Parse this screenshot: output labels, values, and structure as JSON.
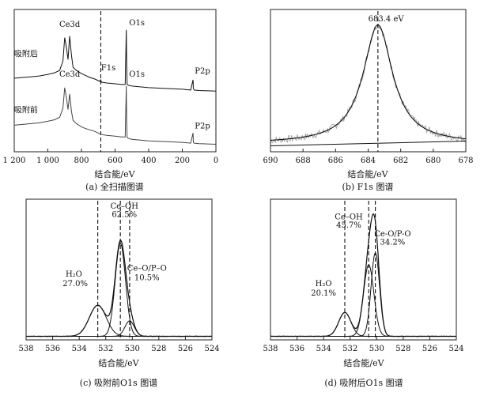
{
  "chart_data": [
    {
      "id": "a",
      "type": "line",
      "caption": "(a) 全扫描图谱",
      "xlabel": "结合能/eV",
      "xlim": [
        1200,
        0
      ],
      "x_ticks": [
        "1 200",
        "1 000",
        "800",
        "600",
        "400",
        "200",
        "0"
      ],
      "x_tick_values": [
        1200,
        1000,
        800,
        600,
        400,
        200,
        0
      ],
      "reference_line_x": 685,
      "series": [
        {
          "name": "吸附后",
          "x": [
            1200,
            1150,
            1100,
            1050,
            1000,
            960,
            930,
            910,
            900,
            890,
            880,
            870,
            860,
            850,
            830,
            800,
            780,
            750,
            720,
            700,
            690,
            686,
            680,
            650,
            600,
            560,
            540,
            533,
            531,
            528,
            520,
            500,
            450,
            400,
            300,
            200,
            150,
            136,
            134,
            130,
            100,
            50,
            0
          ],
          "y": [
            5.6,
            5.65,
            5.7,
            5.75,
            5.85,
            5.95,
            6.1,
            6.7,
            8.2,
            7.6,
            6.8,
            8.3,
            7.1,
            6.3,
            6.1,
            5.9,
            5.8,
            5.65,
            5.55,
            5.45,
            5.4,
            5.5,
            5.35,
            5.3,
            5.25,
            5.2,
            5.2,
            8.7,
            6.4,
            5.2,
            5.15,
            5.1,
            5.05,
            5.0,
            4.95,
            4.9,
            4.85,
            5.5,
            4.95,
            4.85,
            4.82,
            4.8,
            4.78
          ]
        },
        {
          "name": "吸附前",
          "x": [
            1200,
            1150,
            1100,
            1050,
            1000,
            960,
            930,
            910,
            900,
            890,
            880,
            870,
            860,
            850,
            830,
            800,
            780,
            750,
            720,
            700,
            680,
            650,
            600,
            560,
            540,
            533,
            531,
            528,
            520,
            500,
            450,
            400,
            300,
            200,
            150,
            136,
            134,
            130,
            100,
            50,
            0
          ],
          "y": [
            2.6,
            2.65,
            2.7,
            2.75,
            2.85,
            2.95,
            3.1,
            3.7,
            5.0,
            4.4,
            3.6,
            4.6,
            3.5,
            2.9,
            2.7,
            2.5,
            2.4,
            2.3,
            2.2,
            2.1,
            2.0,
            1.95,
            1.9,
            1.85,
            1.85,
            5.1,
            2.7,
            1.8,
            1.75,
            1.7,
            1.65,
            1.6,
            1.55,
            1.5,
            1.45,
            2.1,
            1.5,
            1.45,
            1.42,
            1.4,
            1.38
          ]
        }
      ],
      "annotations": [
        {
          "text": "Ce3d",
          "x": 870,
          "y": 8.9
        },
        {
          "text": "O1s",
          "x": 470,
          "y": 9.0
        },
        {
          "text": "F1s",
          "x": 640,
          "y": 6.1
        },
        {
          "text": "P2p",
          "x": 80,
          "y": 5.9
        },
        {
          "text": "吸附后",
          "x": 1130,
          "y": 7.0
        },
        {
          "text": "Ce3d",
          "x": 870,
          "y": 5.7
        },
        {
          "text": "O1s",
          "x": 470,
          "y": 5.7
        },
        {
          "text": "吸附前",
          "x": 1130,
          "y": 3.4
        },
        {
          "text": "P2p",
          "x": 80,
          "y": 2.4
        }
      ]
    },
    {
      "id": "b",
      "type": "line",
      "caption": "(b) F1s 图谱",
      "xlabel": "结合能/eV",
      "xlim": [
        690,
        678
      ],
      "x_ticks": [
        "690",
        "688",
        "686",
        "684",
        "682",
        "680",
        "678"
      ],
      "x_tick_values": [
        690,
        688,
        686,
        684,
        682,
        680,
        678
      ],
      "reference_line_x": 683.4,
      "peak": {
        "center": 683.4,
        "width": 1.1,
        "height": 1.0,
        "baseline": 0.02
      },
      "annotations": [
        {
          "text": "683.4 eV",
          "x": 682.9,
          "y": 1.05
        }
      ]
    },
    {
      "id": "c",
      "type": "line",
      "caption": "(c) 吸附前O1s 图谱",
      "xlabel": "结合能/eV",
      "xlim": [
        538,
        524
      ],
      "x_ticks": [
        "538",
        "536",
        "534",
        "532",
        "530",
        "528",
        "526",
        "524"
      ],
      "x_tick_values": [
        538,
        536,
        534,
        532,
        530,
        528,
        526,
        524
      ],
      "components": [
        {
          "name": "H2O",
          "center": 532.6,
          "width": 0.9,
          "height": 0.26
        },
        {
          "name": "Ce–OH",
          "center": 530.9,
          "width": 0.55,
          "height": 0.78
        },
        {
          "name": "Ce–O/P–O",
          "center": 530.2,
          "width": 0.5,
          "height": 0.13
        }
      ],
      "reference_lines_x": [
        532.6,
        530.9,
        530.2
      ],
      "annotations": [
        {
          "text": "Ce–OH",
          "x": 530.6,
          "y": 1.07
        },
        {
          "text": "62.5%",
          "x": 530.6,
          "y": 1.0
        },
        {
          "text": "H₂O",
          "x": 534.4,
          "y": 0.5
        },
        {
          "text": "27.0%",
          "x": 534.3,
          "y": 0.42
        },
        {
          "text": "Ce–O/P–O",
          "x": 528.9,
          "y": 0.55
        },
        {
          "text": "10.5%",
          "x": 528.9,
          "y": 0.47
        }
      ]
    },
    {
      "id": "d",
      "type": "line",
      "caption": "(d) 吸附后O1s 图谱",
      "xlabel": "结合能/eV",
      "xlim": [
        538,
        524
      ],
      "x_ticks": [
        "538",
        "536",
        "534",
        "532",
        "530",
        "528",
        "526",
        "524"
      ],
      "x_tick_values": [
        538,
        536,
        534,
        532,
        530,
        528,
        526,
        524
      ],
      "components": [
        {
          "name": "H2O",
          "center": 532.4,
          "width": 0.65,
          "height": 0.2
        },
        {
          "name": "Ce–OH",
          "center": 530.6,
          "width": 0.55,
          "height": 0.6
        },
        {
          "name": "Ce–O/P–O",
          "center": 530.1,
          "width": 0.45,
          "height": 0.7
        }
      ],
      "reference_lines_x": [
        532.4,
        530.6,
        530.1
      ],
      "annotations": [
        {
          "text": "Ce–OH",
          "x": 532.1,
          "y": 0.98
        },
        {
          "text": "45.7%",
          "x": 532.1,
          "y": 0.91
        },
        {
          "text": "Ce-O/P-O",
          "x": 528.8,
          "y": 0.84
        },
        {
          "text": "34.2%",
          "x": 528.8,
          "y": 0.77
        },
        {
          "text": "H₂O",
          "x": 534.0,
          "y": 0.42
        },
        {
          "text": "20.1%",
          "x": 534.0,
          "y": 0.34
        }
      ]
    }
  ]
}
